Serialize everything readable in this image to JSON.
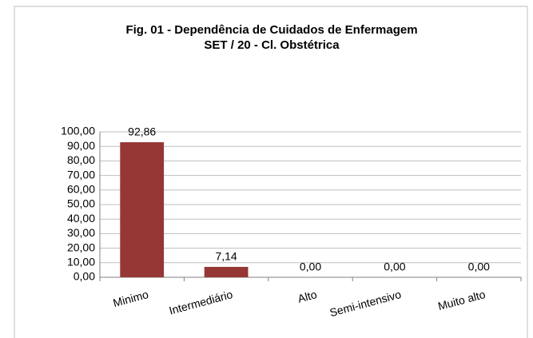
{
  "chart_data": {
    "type": "bar",
    "title": "Fig. 01 - Dependência de Cuidados de Enfermagem",
    "subtitle": "SET / 20 - Cl. Obstétrica",
    "categories": [
      "Minimo",
      "Intermediário",
      "Alto",
      "Semi-intensivo",
      "Muito alto"
    ],
    "values": [
      92.86,
      7.14,
      0,
      0,
      0
    ],
    "value_labels": [
      "92,86",
      "7,14",
      "0,00",
      "0,00",
      "0,00"
    ],
    "color": "#953735",
    "ylim": [
      0,
      100
    ],
    "yticks": [
      {
        "value": 0,
        "label": "0,00"
      },
      {
        "value": 10,
        "label": "10,00"
      },
      {
        "value": 20,
        "label": "20,00"
      },
      {
        "value": 30,
        "label": "30,00"
      },
      {
        "value": 40,
        "label": "40,00"
      },
      {
        "value": 50,
        "label": "50,00"
      },
      {
        "value": 60,
        "label": "60,00"
      },
      {
        "value": 70,
        "label": "70,00"
      },
      {
        "value": 80,
        "label": "80,00"
      },
      {
        "value": 90,
        "label": "90,00"
      },
      {
        "value": 100,
        "label": "100,00"
      }
    ],
    "grid": true
  }
}
